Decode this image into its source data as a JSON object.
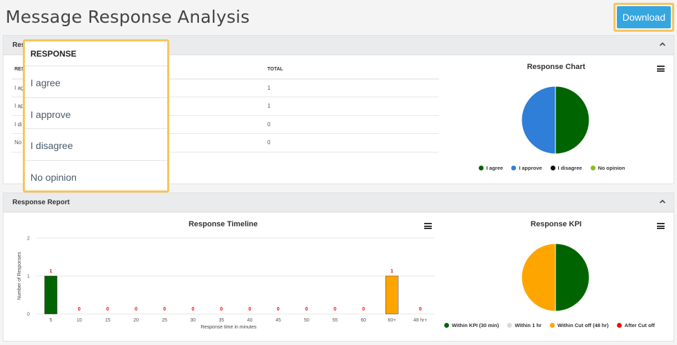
{
  "page": {
    "title": "Message Response Analysis",
    "download_label": "Download"
  },
  "panel1": {
    "title": "Res",
    "table": {
      "headers": [
        "RESP",
        "TOTAL"
      ],
      "rows": [
        {
          "label": "I agr",
          "total": "1"
        },
        {
          "label": "I ap",
          "total": "1"
        },
        {
          "label": "I di",
          "total": "0"
        },
        {
          "label": "No",
          "total": "0"
        }
      ]
    },
    "chart_title": "Response Chart"
  },
  "popup": {
    "header": "RESPONSE",
    "items": [
      "I agree",
      "I approve",
      "I disagree",
      "No opinion"
    ]
  },
  "panel2": {
    "title": "Response Report",
    "timeline_title": "Response Timeline",
    "kpi_title": "Response KPI"
  },
  "colors": {
    "dark_green": "#006400",
    "blue": "#2f7ed8",
    "black": "#111111",
    "yellow_green": "#8bbc21",
    "orange": "#ffa500",
    "light_gray": "#d9d9d9",
    "red": "#ff0000",
    "accent": "#35a6e0",
    "highlight": "#f7c55b"
  },
  "chart_data": [
    {
      "type": "pie",
      "title": "Response Chart",
      "labels": [
        "I agree",
        "I approve",
        "I disagree",
        "No opinion"
      ],
      "values": [
        1,
        1,
        0,
        0
      ],
      "colors": [
        "#006400",
        "#2f7ed8",
        "#111111",
        "#8bbc21"
      ],
      "legend": "bottom"
    },
    {
      "type": "bar",
      "title": "Response Timeline",
      "xlabel": "Response time in minutes",
      "ylabel": "Number of Responses",
      "categories": [
        "5",
        "10",
        "15",
        "20",
        "25",
        "30",
        "35",
        "40",
        "45",
        "50",
        "55",
        "60",
        "60+",
        "48 hr+"
      ],
      "values": [
        1,
        0,
        0,
        0,
        0,
        0,
        0,
        0,
        0,
        0,
        0,
        0,
        1,
        0
      ],
      "bar_colors": [
        "#006400",
        "#006400",
        "#006400",
        "#006400",
        "#006400",
        "#006400",
        "#006400",
        "#006400",
        "#006400",
        "#006400",
        "#006400",
        "#006400",
        "#ffa500",
        "#ff0000"
      ],
      "ylim": [
        0,
        2
      ],
      "yticks": [
        "0",
        "1",
        "2"
      ],
      "data_label_color": "#ff0000",
      "grid": true
    },
    {
      "type": "pie",
      "title": "Response KPI",
      "labels": [
        "Within KPI (30 min)",
        "Within 1 hr",
        "Within Cut off (48 hr)",
        "After Cut off"
      ],
      "values": [
        1,
        0,
        1,
        0
      ],
      "colors": [
        "#006400",
        "#d9d9d9",
        "#ffa500",
        "#ff0000"
      ],
      "legend": "bottom"
    }
  ]
}
